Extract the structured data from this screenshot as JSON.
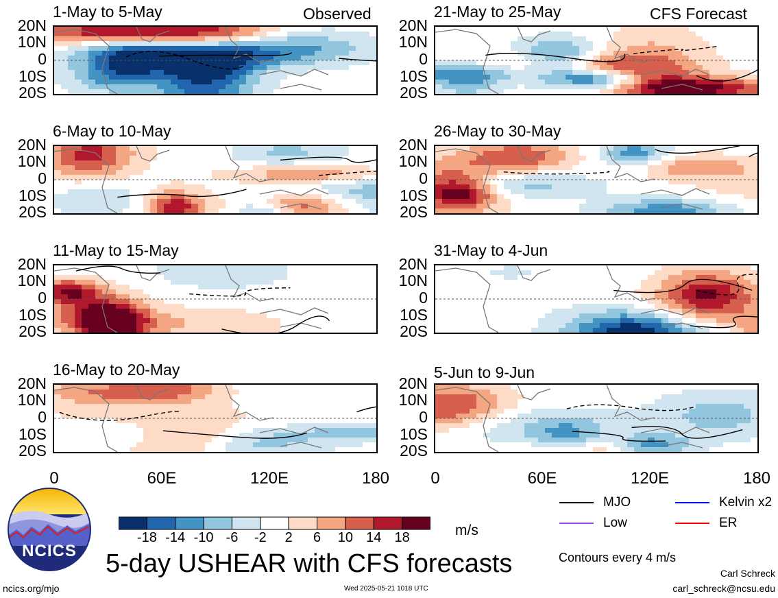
{
  "header": {
    "observed_label": "Observed",
    "forecast_label": "CFS Forecast"
  },
  "panels": {
    "left": [
      {
        "title": "1-May to 5-May"
      },
      {
        "title": "6-May to 10-May"
      },
      {
        "title": "11-May to 15-May"
      },
      {
        "title": "16-May to 20-May"
      }
    ],
    "right": [
      {
        "title": "21-May to 25-May"
      },
      {
        "title": "26-May to 30-May"
      },
      {
        "title": "31-May to 4-Jun"
      },
      {
        "title": "5-Jun to 9-Jun"
      }
    ]
  },
  "lat_labels": [
    "20N",
    "10N",
    "0",
    "10S",
    "20S"
  ],
  "lon_labels": [
    "0",
    "60E",
    "120E",
    "180"
  ],
  "colorbar": {
    "labels": [
      "-18",
      "-14",
      "-10",
      "-6",
      "-2",
      "2",
      "6",
      "10",
      "14",
      "18"
    ],
    "colors": [
      "#08306b",
      "#2166ac",
      "#4393c3",
      "#92c5de",
      "#d1e5f0",
      "#ffffff",
      "#fddbc7",
      "#f4a582",
      "#d6604d",
      "#b2182b",
      "#67001f"
    ],
    "unit": "m/s"
  },
  "legend": {
    "mjo": {
      "label": "MJO",
      "color": "#000000"
    },
    "kelvin": {
      "label": "Kelvin x2",
      "color": "#0000ff"
    },
    "low": {
      "label": "Low",
      "color": "#a040e0"
    },
    "er": {
      "label": "ER",
      "color": "#ff0000"
    },
    "contour_note": "Contours every 4 m/s"
  },
  "footer": {
    "main_title": "5-day USHEAR with CFS forecasts",
    "logo_text": "NCICS",
    "url": "ncics.org/mjo",
    "timestamp": "Wed 2025-05-21 1018 UTC",
    "author": "Carl Schreck",
    "email": "carl_schreck@ncsu.edu"
  }
}
